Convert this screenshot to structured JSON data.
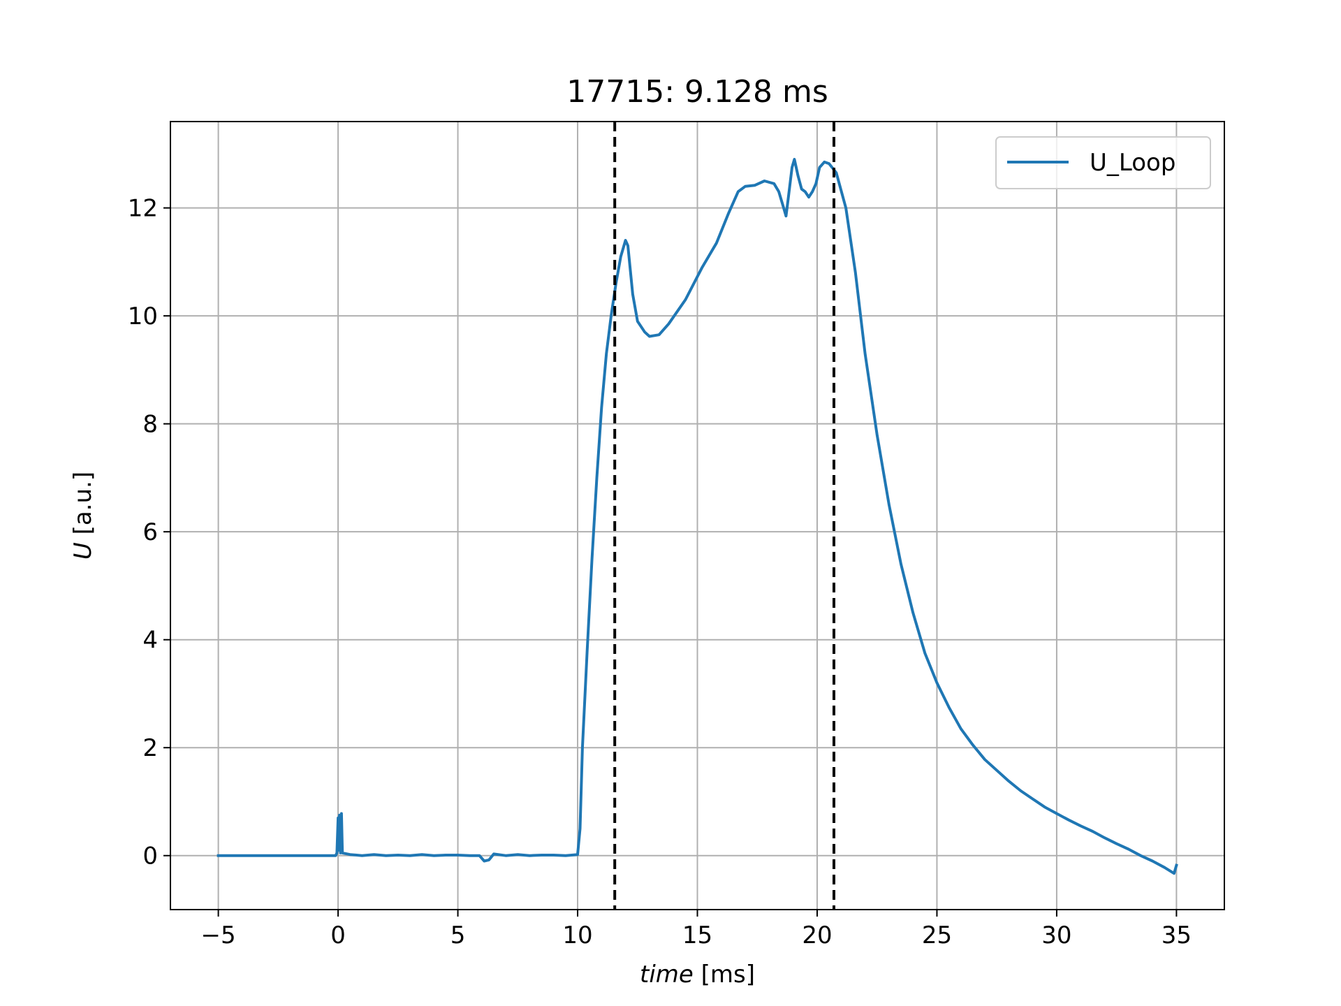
{
  "chart_data": {
    "type": "line",
    "title": "17715: 9.128 ms",
    "xlabel": {
      "italic": "time",
      "rest": " [ms]"
    },
    "ylabel": {
      "italic": "U",
      "rest": " [a.u.]"
    },
    "xlim": [
      -7,
      37
    ],
    "ylim": [
      -1,
      13.6
    ],
    "xticks": [
      -5,
      0,
      5,
      10,
      15,
      20,
      25,
      30,
      35
    ],
    "xtick_labels": [
      "−5",
      "0",
      "5",
      "10",
      "15",
      "20",
      "25",
      "30",
      "35"
    ],
    "yticks": [
      0,
      2,
      4,
      6,
      8,
      10,
      12
    ],
    "ytick_labels": [
      "0",
      "2",
      "4",
      "6",
      "8",
      "10",
      "12"
    ],
    "grid": true,
    "legend_position": "top-right",
    "vlines": [
      {
        "x": 11.55,
        "style": "dashed",
        "color": "#000000"
      },
      {
        "x": 20.7,
        "style": "dashed",
        "color": "#000000"
      }
    ],
    "series": [
      {
        "name": "U_Loop",
        "color": "#1f77b4",
        "points": [
          [
            -5,
            0
          ],
          [
            -0.1,
            0
          ],
          [
            -0.05,
            0.05
          ],
          [
            0,
            0.7
          ],
          [
            0.02,
            0.1
          ],
          [
            0.06,
            0.75
          ],
          [
            0.1,
            0.05
          ],
          [
            0.14,
            0.78
          ],
          [
            0.18,
            0.05
          ],
          [
            0.5,
            0.02
          ],
          [
            1,
            0
          ],
          [
            1.5,
            0.02
          ],
          [
            2,
            0
          ],
          [
            2.5,
            0.01
          ],
          [
            3,
            0
          ],
          [
            3.5,
            0.02
          ],
          [
            4,
            0
          ],
          [
            4.5,
            0.01
          ],
          [
            5,
            0.01
          ],
          [
            5.5,
            0
          ],
          [
            5.9,
            0
          ],
          [
            6.1,
            -0.1
          ],
          [
            6.3,
            -0.08
          ],
          [
            6.5,
            0.03
          ],
          [
            7,
            0
          ],
          [
            7.5,
            0.02
          ],
          [
            8,
            0
          ],
          [
            8.5,
            0.01
          ],
          [
            9,
            0.01
          ],
          [
            9.5,
            0
          ],
          [
            10,
            0.02
          ],
          [
            10.1,
            0.5
          ],
          [
            10.2,
            2
          ],
          [
            10.4,
            3.8
          ],
          [
            10.6,
            5.5
          ],
          [
            10.8,
            7
          ],
          [
            11,
            8.3
          ],
          [
            11.2,
            9.3
          ],
          [
            11.4,
            10
          ],
          [
            11.6,
            10.6
          ],
          [
            11.8,
            11.1
          ],
          [
            12,
            11.4
          ],
          [
            12.1,
            11.3
          ],
          [
            12.3,
            10.4
          ],
          [
            12.5,
            9.9
          ],
          [
            12.8,
            9.7
          ],
          [
            13,
            9.62
          ],
          [
            13.4,
            9.65
          ],
          [
            13.8,
            9.85
          ],
          [
            14.5,
            10.3
          ],
          [
            15.2,
            10.9
          ],
          [
            15.8,
            11.35
          ],
          [
            16.3,
            11.9
          ],
          [
            16.7,
            12.3
          ],
          [
            17,
            12.4
          ],
          [
            17.4,
            12.42
          ],
          [
            17.8,
            12.5
          ],
          [
            18.2,
            12.45
          ],
          [
            18.4,
            12.3
          ],
          [
            18.6,
            12.0
          ],
          [
            18.7,
            11.85
          ],
          [
            18.8,
            12.2
          ],
          [
            18.95,
            12.75
          ],
          [
            19.05,
            12.9
          ],
          [
            19.2,
            12.6
          ],
          [
            19.35,
            12.35
          ],
          [
            19.5,
            12.3
          ],
          [
            19.65,
            12.2
          ],
          [
            19.8,
            12.3
          ],
          [
            19.95,
            12.45
          ],
          [
            20.1,
            12.75
          ],
          [
            20.3,
            12.85
          ],
          [
            20.5,
            12.82
          ],
          [
            20.8,
            12.65
          ],
          [
            21.2,
            12.0
          ],
          [
            21.6,
            10.8
          ],
          [
            22,
            9.3
          ],
          [
            22.5,
            7.8
          ],
          [
            23,
            6.5
          ],
          [
            23.5,
            5.4
          ],
          [
            24,
            4.5
          ],
          [
            24.5,
            3.75
          ],
          [
            25,
            3.2
          ],
          [
            25.5,
            2.75
          ],
          [
            26,
            2.35
          ],
          [
            26.5,
            2.05
          ],
          [
            27,
            1.78
          ],
          [
            27.5,
            1.58
          ],
          [
            28,
            1.38
          ],
          [
            28.5,
            1.2
          ],
          [
            29,
            1.05
          ],
          [
            29.5,
            0.9
          ],
          [
            30,
            0.78
          ],
          [
            30.5,
            0.66
          ],
          [
            31,
            0.55
          ],
          [
            31.5,
            0.45
          ],
          [
            32,
            0.33
          ],
          [
            32.5,
            0.22
          ],
          [
            33,
            0.12
          ],
          [
            33.5,
            0.0
          ],
          [
            34,
            -0.1
          ],
          [
            34.5,
            -0.22
          ],
          [
            34.9,
            -0.33
          ],
          [
            35,
            -0.18
          ]
        ]
      }
    ]
  }
}
